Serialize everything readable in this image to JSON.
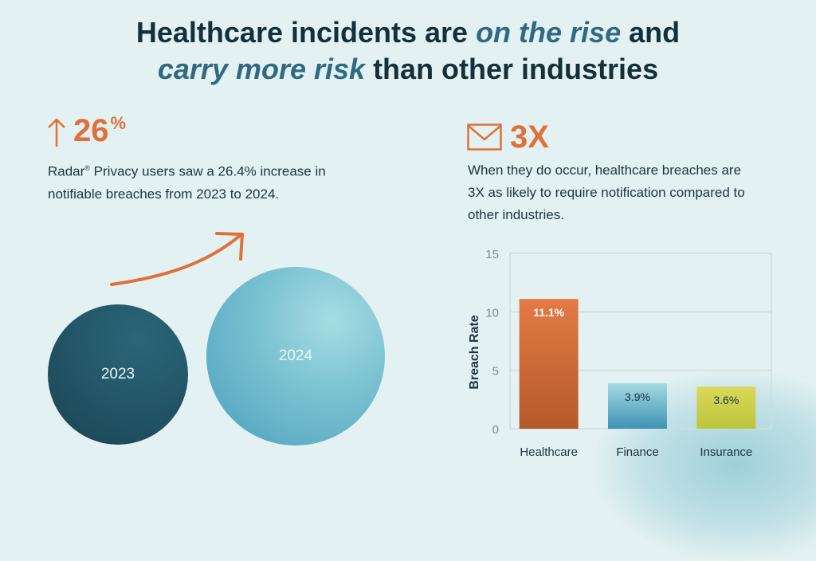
{
  "title": {
    "line1_a": "Healthcare incidents are ",
    "line1_em": "on the rise",
    "line1_b": " and",
    "line2_em": "carry more risk",
    "line2_b": " than other industries"
  },
  "left_stat": {
    "icon": "arrow-up-icon",
    "value": "26",
    "suffix": "%",
    "desc_brand": "Radar",
    "desc_reg": "®",
    "desc_rest": " Privacy users saw a 26.4% increase in notifiable breaches from 2023 to 2024."
  },
  "right_stat": {
    "icon": "envelope-icon",
    "value": "3X",
    "desc": "When they do occur, healthcare breaches are 3X as likely to require notification compared to other industries."
  },
  "circles": [
    {
      "label": "2023"
    },
    {
      "label": "2024"
    }
  ],
  "colors": {
    "accent": "#e0703a",
    "title_em": "#2e6a82"
  },
  "chart_data": {
    "type": "bar",
    "title": "",
    "xlabel": "",
    "ylabel": "Breach Rate",
    "ylim": [
      0,
      15
    ],
    "yticks": [
      0,
      5,
      10,
      15
    ],
    "grid": true,
    "categories": [
      "Healthcare",
      "Finance",
      "Insurance"
    ],
    "values": [
      11.1,
      3.9,
      3.6
    ],
    "data_labels": [
      "11.1%",
      "3.9%",
      "3.6%"
    ],
    "bar_colors": [
      [
        "#e47a45",
        "#b35a2a"
      ],
      [
        "#a6d9e2",
        "#3e93b5"
      ],
      [
        "#d9d95a",
        "#bcc43c"
      ]
    ],
    "label_colors": [
      "#ffffff",
      "#1d3340",
      "#1d3340"
    ]
  }
}
